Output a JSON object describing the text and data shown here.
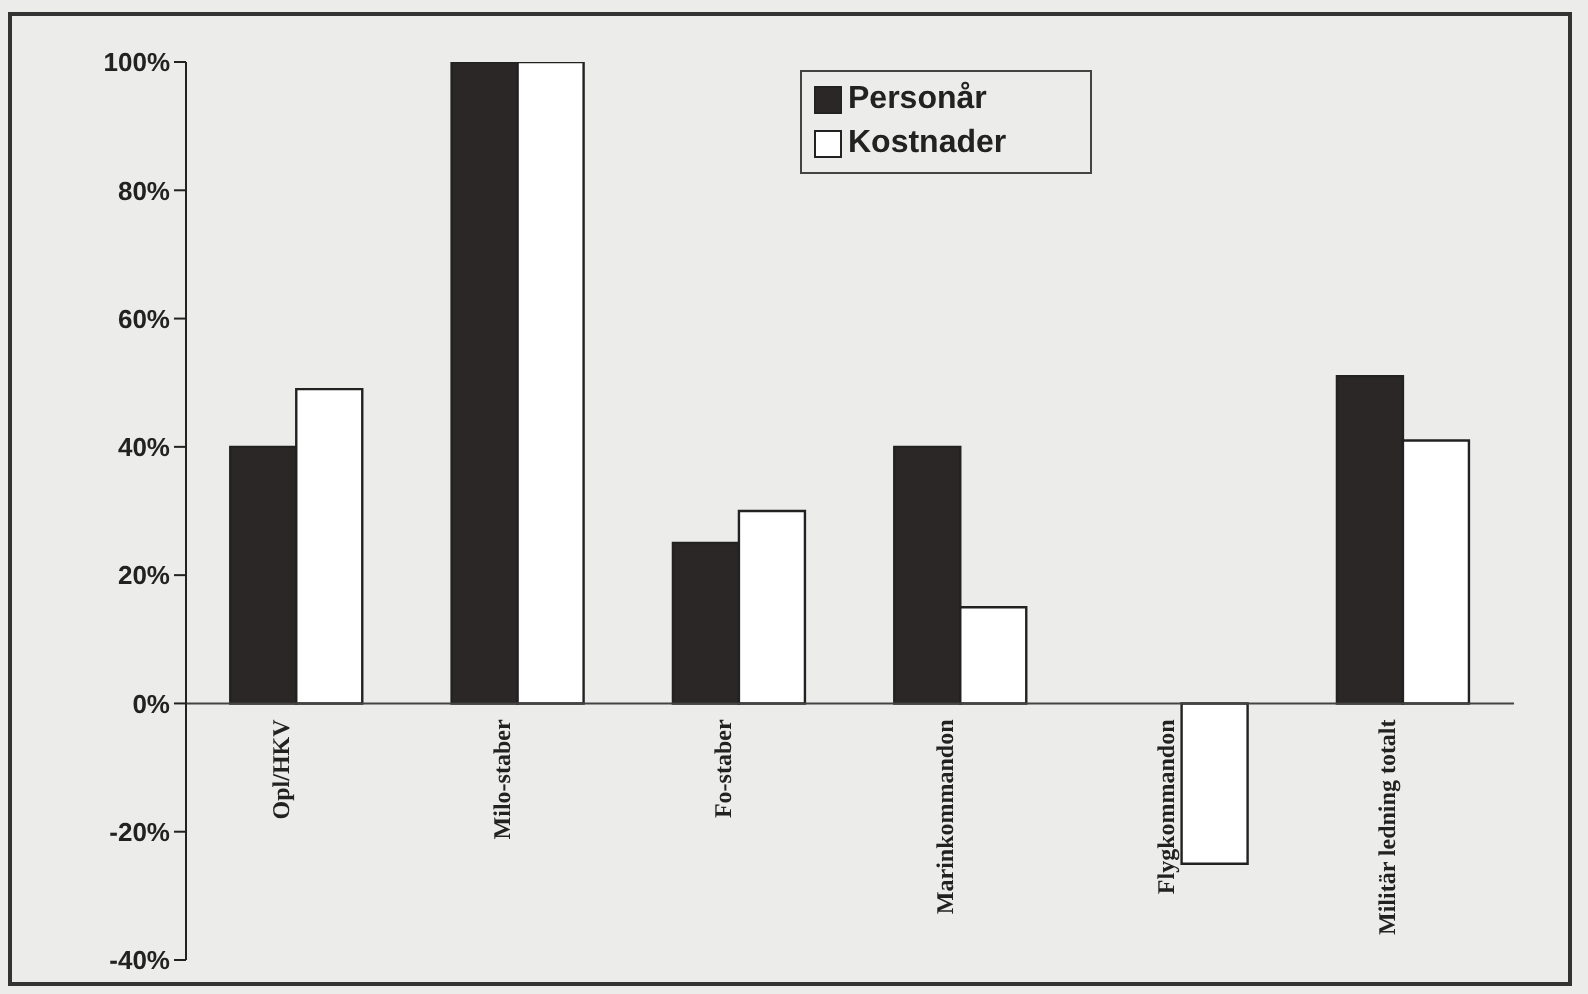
{
  "chart_data": {
    "type": "bar",
    "categories": [
      "Opl/HKV",
      "Milo-staber",
      "Fo-staber",
      "Marinkommandon",
      "Flygkommandon",
      "Militär ledning totalt"
    ],
    "series": [
      {
        "name": "Personår",
        "color": "#2b2727",
        "values": [
          40,
          100,
          25,
          40,
          null,
          51
        ]
      },
      {
        "name": "Kostnader",
        "color": "#ffffff",
        "values": [
          49,
          100,
          30,
          15,
          -25,
          41
        ]
      }
    ],
    "ylim": [
      -40,
      100
    ],
    "yticks": [
      {
        "value": -40,
        "label": "-40%"
      },
      {
        "value": -20,
        "label": "-20%"
      },
      {
        "value": 0,
        "label": "0%"
      },
      {
        "value": 20,
        "label": "20%"
      },
      {
        "value": 40,
        "label": "40%"
      },
      {
        "value": 60,
        "label": "60%"
      },
      {
        "value": 80,
        "label": "80%"
      },
      {
        "value": 100,
        "label": "100%"
      }
    ],
    "grid": false,
    "legend": "top"
  }
}
